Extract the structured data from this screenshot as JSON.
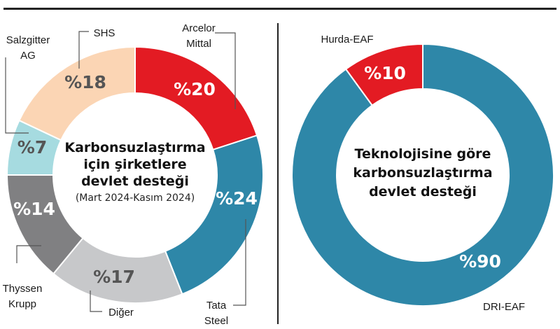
{
  "chart_data": [
    {
      "type": "pie",
      "variant": "donut",
      "title_lines": [
        "Karbonsuzlaştırma",
        "için şirketlere",
        "devlet desteği"
      ],
      "subtitle": "(Mart 2024-Kasım 2024)",
      "slices": [
        {
          "name": "Arcelor Mittal",
          "label_lines": [
            "Arcelor",
            "Mittal"
          ],
          "value": 20,
          "display": "%20",
          "color": "#e31b23",
          "text_color": "#ffffff"
        },
        {
          "name": "Tata Steel",
          "label_lines": [
            "Tata",
            "Steel"
          ],
          "value": 24,
          "display": "%24",
          "color": "#2e87a8",
          "text_color": "#ffffff"
        },
        {
          "name": "Diğer",
          "label_lines": [
            "Diğer"
          ],
          "value": 17,
          "display": "%17",
          "color": "#c7c8ca",
          "text_color": "#555555"
        },
        {
          "name": "Thyssen Krupp",
          "label_lines": [
            "Thyssen",
            "Krupp"
          ],
          "value": 14,
          "display": "%14",
          "color": "#808082",
          "text_color": "#ffffff"
        },
        {
          "name": "Salzgitter AG",
          "label_lines": [
            "Salzgitter",
            "AG"
          ],
          "value": 7,
          "display": "%7",
          "color": "#a6dbe0",
          "text_color": "#555555"
        },
        {
          "name": "SHS",
          "label_lines": [
            "SHS"
          ],
          "value": 18,
          "display": "%18",
          "color": "#fbd5b4",
          "text_color": "#555555"
        }
      ]
    },
    {
      "type": "pie",
      "variant": "donut",
      "title_lines": [
        "Teknolojisine göre",
        "karbonsuzlaştırma",
        "devlet desteği"
      ],
      "slices": [
        {
          "name": "DRI-EAF",
          "label_lines": [
            "DRI-EAF"
          ],
          "value": 90,
          "display": "%90",
          "color": "#2e87a8",
          "text_color": "#ffffff"
        },
        {
          "name": "Hurda-EAF",
          "label_lines": [
            "Hurda-EAF"
          ],
          "value": 10,
          "display": "%10",
          "color": "#e31b23",
          "text_color": "#ffffff"
        }
      ]
    }
  ]
}
